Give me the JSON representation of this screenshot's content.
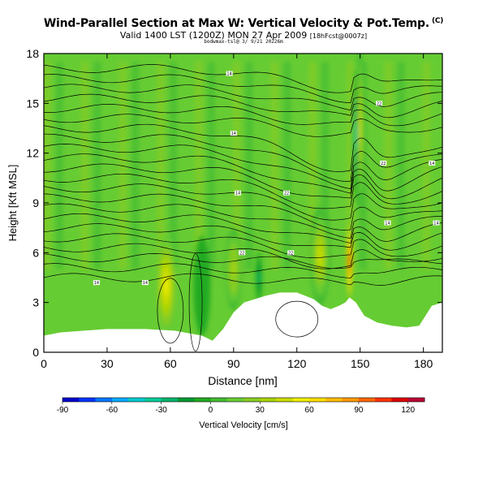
{
  "header": {
    "title": "Wind-Parallel Section at Max W: Vertical Velocity & Pot.Temp.",
    "title_mark": "(C)",
    "subtitle_main": "Valid 1400 LST (1200Z) MON 27 Apr 2009",
    "subtitle_small": "[18hFcst@0007z]",
    "info_line": "bodwmax-tsl@ 3/ 9/21 20226m"
  },
  "chart_data": {
    "type": "heatmap",
    "xlabel": "Distance [nm]",
    "ylabel": "Height [Kft MSL]",
    "x_ticks": [
      "0",
      "30",
      "60",
      "90",
      "120",
      "150",
      "180"
    ],
    "y_ticks": [
      "0",
      "3",
      "6",
      "9",
      "12",
      "15",
      "18"
    ],
    "xlim": [
      0,
      189
    ],
    "ylim": [
      0,
      18
    ],
    "terrain": {
      "distance_nm": [
        0,
        8,
        30,
        48,
        62,
        75,
        80,
        85,
        90,
        95,
        100,
        105,
        112,
        120,
        128,
        132,
        136,
        140,
        143,
        145,
        148,
        152,
        158,
        165,
        172,
        178,
        184,
        189
      ],
      "height_kft": [
        1.0,
        1.2,
        1.4,
        1.4,
        1.3,
        1.0,
        0.7,
        1.4,
        2.4,
        3.0,
        3.2,
        3.4,
        3.6,
        3.6,
        3.2,
        2.8,
        2.6,
        2.8,
        3.0,
        3.3,
        3.0,
        2.2,
        1.8,
        1.6,
        1.5,
        1.6,
        2.8,
        3.0
      ]
    },
    "vertical_velocity_features": [
      {
        "x_nm": 58,
        "y_kft": 4.0,
        "w_cms": 55,
        "width_nm": 10,
        "height_kft": 6.0
      },
      {
        "x_nm": 90,
        "y_kft": 5.0,
        "w_cms": 35,
        "width_nm": 8,
        "height_kft": 5.0
      },
      {
        "x_nm": 131,
        "y_kft": 5.8,
        "w_cms": 45,
        "width_nm": 10,
        "height_kft": 6.0
      },
      {
        "x_nm": 145,
        "y_kft": 5.5,
        "w_cms": 110,
        "width_nm": 3,
        "height_kft": 5.0
      },
      {
        "x_nm": 150,
        "y_kft": 13.5,
        "w_cms": 40,
        "width_nm": 4,
        "height_kft": 10.0
      },
      {
        "x_nm": 148,
        "y_kft": 13.0,
        "w_cms": -35,
        "width_nm": 2,
        "height_kft": 8.0
      },
      {
        "x_nm": 102,
        "y_kft": 4.5,
        "w_cms": -25,
        "width_nm": 3,
        "height_kft": 3.0
      },
      {
        "x_nm": 75,
        "y_kft": 4.0,
        "w_cms": -10,
        "width_nm": 8,
        "height_kft": 6.0
      }
    ],
    "colorbar": {
      "label": "Vertical Velocity [cm/s]",
      "min": -90,
      "max": 130,
      "step": 10,
      "tick_labels": [
        "-90",
        "-60",
        "-30",
        "0",
        "30",
        "60",
        "90",
        "120"
      ],
      "colors": [
        "#0000cc",
        "#0033ff",
        "#0077ff",
        "#00aaff",
        "#00cccc",
        "#00cc99",
        "#00b36b",
        "#009933",
        "#22aa22",
        "#44bb33",
        "#66cc33",
        "#88cc22",
        "#aad400",
        "#ccdd00",
        "#eeee00",
        "#ffdd00",
        "#ffbb00",
        "#ff9900",
        "#ff6600",
        "#ff3300",
        "#dd0000",
        "#bb0033"
      ]
    },
    "pot_temp_contour_labels": [
      "14",
      "22",
      "14",
      "14",
      "22",
      "14",
      "22",
      "14",
      "14",
      "22",
      "14",
      "22",
      "14"
    ]
  },
  "colors": {
    "background": "#ffffff",
    "below_ground": "#ffffff",
    "contour": "#000000"
  }
}
